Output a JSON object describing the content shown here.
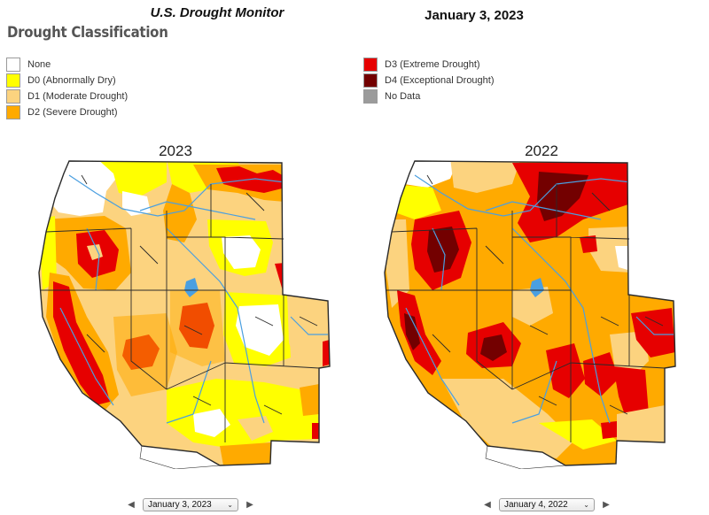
{
  "header": {
    "monitor_title": "U.S. Drought Monitor",
    "date_title": "January 3, 2023",
    "classification_heading": "Drought Classification"
  },
  "legend": {
    "left": [
      {
        "label": "None",
        "color": "#ffffff"
      },
      {
        "label": "D0 (Abnormally Dry)",
        "color": "#ffff00"
      },
      {
        "label": "D1 (Moderate Drought)",
        "color": "#fcd37f"
      },
      {
        "label": "D2 (Severe Drought)",
        "color": "#ffaa00"
      }
    ],
    "right": [
      {
        "label": "D3 (Extreme Drought)",
        "color": "#e60000"
      },
      {
        "label": "D4 (Exceptional Drought)",
        "color": "#730000"
      },
      {
        "label": "No Data",
        "color": "#9b9b9b"
      }
    ]
  },
  "maps": {
    "left": {
      "year": "2023",
      "selected_date": "January 3, 2023"
    },
    "right": {
      "year": "2022",
      "selected_date": "January 4, 2022"
    }
  },
  "nav": {
    "prev_icon": "chevron-left-icon",
    "next_icon": "chevron-right-icon",
    "dropdown_icon": "chevron-down-icon"
  },
  "colors": {
    "none": "#ffffff",
    "d0": "#ffff00",
    "d1": "#fcd37f",
    "d2": "#ffaa00",
    "d3": "#e60000",
    "d4": "#730000",
    "nodata": "#9b9b9b",
    "rivers": "#4a9fe0",
    "boundaries": "#2a2a2a"
  }
}
